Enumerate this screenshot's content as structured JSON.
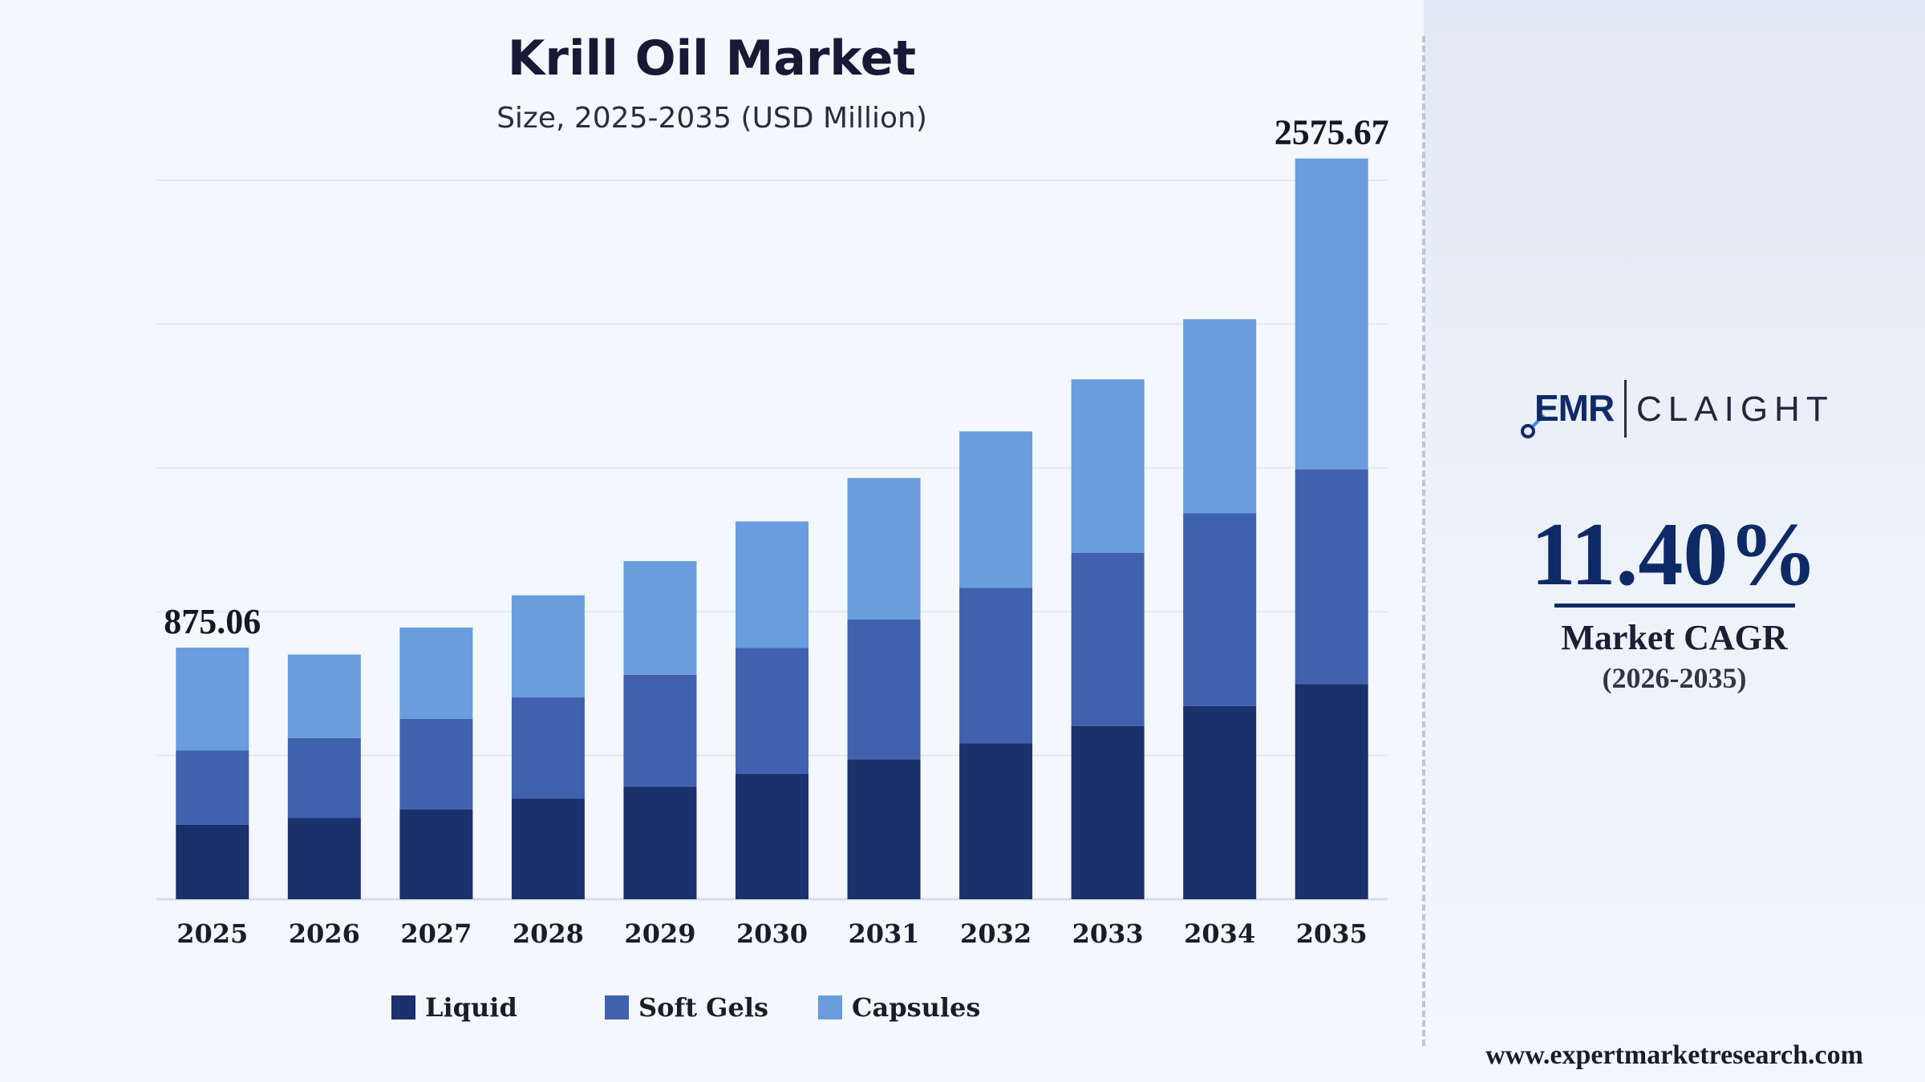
{
  "header": {
    "title": "Krill Oil Market",
    "subtitle": "Size, 2025-2035 (USD Million)"
  },
  "chart_data": {
    "type": "bar",
    "stacked": true,
    "title": "Krill Oil Market",
    "subtitle": "Size, 2025-2035 (USD Million)",
    "categories": [
      "2025",
      "2026",
      "2027",
      "2028",
      "2029",
      "2030",
      "2031",
      "2032",
      "2033",
      "2034",
      "2035"
    ],
    "series": [
      {
        "name": "Liquid",
        "color": "#1b316d",
        "values": [
          260,
          283,
          313,
          350,
          392,
          436,
          487,
          542,
          603,
          672,
          749
        ]
      },
      {
        "name": "Soft Gels",
        "color": "#4161ae",
        "values": [
          257,
          278,
          314,
          352,
          389,
          438,
          486,
          541,
          602,
          670,
          746
        ]
      },
      {
        "name": "Capsules",
        "color": "#699ddd",
        "values": [
          358,
          290,
          318,
          355,
          395,
          440,
          492,
          544,
          603,
          675,
          1081
        ]
      }
    ],
    "totals": [
      875.06,
      851,
      945,
      1057,
      1176,
      1314,
      1465,
      1627,
      1808,
      2017,
      2575.67
    ],
    "data_labels": [
      {
        "category": "2025",
        "text": "875.06"
      },
      {
        "category": "2035",
        "text": "2575.67"
      }
    ],
    "ylim": [
      0,
      2500
    ],
    "grid": true,
    "legend_position": "bottom"
  },
  "legend": {
    "items": [
      {
        "label": "Liquid",
        "color": "#1b316d"
      },
      {
        "label": "Soft Gels",
        "color": "#4161ae"
      },
      {
        "label": "Capsules",
        "color": "#699ddd"
      }
    ]
  },
  "sidebar": {
    "logo_left": "EMR",
    "logo_right": "CLAIGHT",
    "cagr_value": "11.40%",
    "cagr_label": "Market CAGR",
    "cagr_period": "(2026-2035)",
    "website": "www.expertmarketresearch.com"
  },
  "colors": {
    "accent": "#0e2a66",
    "liquid": "#1b316d",
    "soft_gels": "#4161ae",
    "capsules": "#699ddd"
  }
}
